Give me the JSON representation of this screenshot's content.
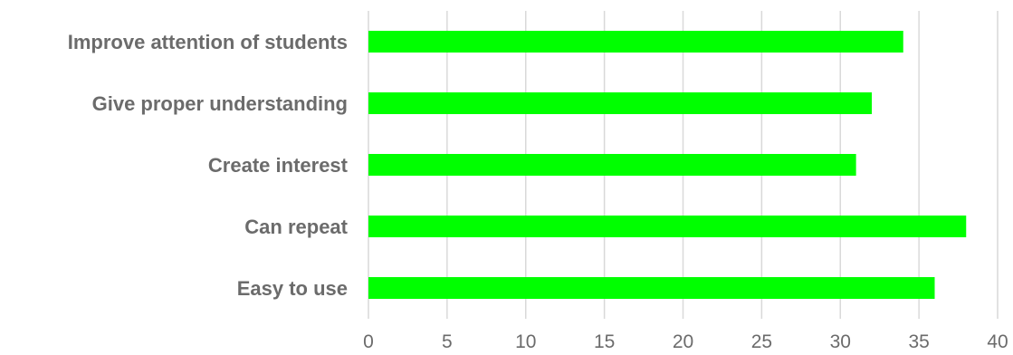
{
  "chart_data": {
    "type": "bar",
    "orientation": "horizontal",
    "title": "",
    "xlabel": "",
    "ylabel": "",
    "categories": [
      "Improve attention of students",
      "Give proper understanding",
      "Create interest",
      "Can repeat",
      "Easy to use"
    ],
    "values": [
      34,
      32,
      31,
      38,
      36
    ],
    "xlim": [
      0,
      40
    ],
    "x_ticks": [
      0,
      5,
      10,
      15,
      20,
      25,
      30,
      35,
      40
    ],
    "grid": "vertical",
    "legend": "none",
    "bar_color": "#00ff00"
  }
}
